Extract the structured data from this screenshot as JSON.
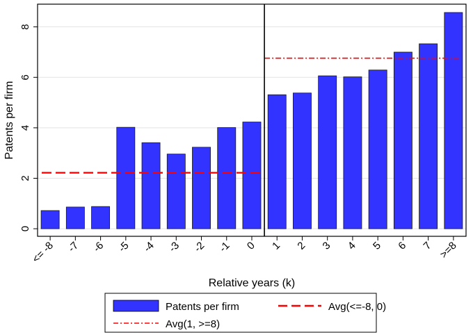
{
  "chart_data": {
    "type": "bar",
    "title": "",
    "xlabel": "Relative years (k)",
    "ylabel": "Patents per firm",
    "ylim": [
      -0.3,
      8.9
    ],
    "yticks": [
      0,
      2,
      4,
      6,
      8
    ],
    "grid": true,
    "categories": [
      "<= -8",
      "-7",
      "-6",
      "-5",
      "-4",
      "-3",
      "-2",
      "-1",
      "0",
      "1",
      "2",
      "3",
      "4",
      "5",
      "6",
      "7",
      ">=8"
    ],
    "series": [
      {
        "name": "Patents per firm",
        "color": "#3333ff",
        "values": [
          0.72,
          0.86,
          0.88,
          4.02,
          3.41,
          2.96,
          3.23,
          4.01,
          4.23,
          5.31,
          5.38,
          6.06,
          6.02,
          6.29,
          7.0,
          7.33,
          8.57
        ]
      }
    ],
    "reference_lines": [
      {
        "name": "Avg(<=-8, 0)",
        "value": 2.22,
        "from_category": 0,
        "to_category": 8,
        "style": "dashed",
        "color": "#ff0000"
      },
      {
        "name": "Avg(1, >=8)",
        "value": 6.76,
        "from_category": 9,
        "to_category": 16,
        "style": "dashdot",
        "color": "#ff0000"
      }
    ],
    "vertical_line_after_category": 8,
    "legend": {
      "placement": "bottom",
      "entries": [
        "Patents per firm",
        "Avg(<=-8, 0)",
        "Avg(1, >=8)"
      ]
    }
  }
}
